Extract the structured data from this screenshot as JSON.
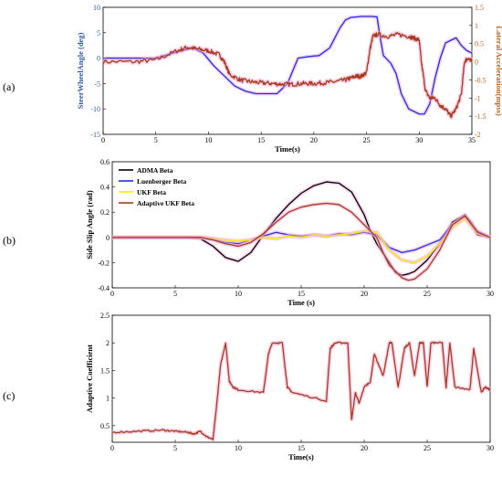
{
  "panels": [
    "(a)",
    "(b)",
    "(c)"
  ],
  "chart_data": [
    {
      "type": "line",
      "panel": "(a)",
      "xlabel": "Time(s)",
      "ylabel_left": "SteerWheelAngle (deg)",
      "ylabel_right": "Lateral Acceleration(mpss)",
      "xlim": [
        0,
        35
      ],
      "ylim_left": [
        -15,
        10
      ],
      "ylim_right": [
        -2,
        1.5
      ],
      "xticks": [
        0,
        5,
        10,
        15,
        20,
        25,
        30,
        35
      ],
      "yticks_left": [
        10,
        5,
        0,
        -5,
        -10,
        -15
      ],
      "yticks_right": [
        1.5,
        1,
        0.5,
        0,
        -0.5,
        -1,
        -1.5,
        -2
      ],
      "left_color": "#2f5aa8",
      "right_color": "#b5651d",
      "series": [
        {
          "axis": "left",
          "color": "#1f2fe0",
          "x": [
            0,
            5,
            7,
            8.5,
            9.5,
            10.5,
            11.5,
            12.5,
            13.5,
            14.5,
            15.5,
            16.5,
            17.5,
            18.5,
            19.5,
            20.5,
            21.5,
            22.5,
            23,
            23.5,
            24.5,
            25.5,
            26,
            26.3,
            26.6,
            27.3,
            27.8,
            28.3,
            29,
            30,
            30.5,
            31,
            31.5,
            32,
            32.5,
            33.5,
            34,
            34.5,
            35
          ],
          "y": [
            0,
            0,
            1.2,
            2.0,
            1.0,
            -1.5,
            -3.5,
            -5.5,
            -6.5,
            -7.0,
            -7.0,
            -7.0,
            -5.0,
            0.0,
            0.3,
            0.5,
            2.0,
            6.0,
            7.5,
            8.0,
            8.2,
            8.2,
            8.1,
            4.0,
            0.5,
            -1.0,
            -3.0,
            -7.0,
            -10.0,
            -11.0,
            -11.0,
            -9.0,
            -4.0,
            0.0,
            3.0,
            4.0,
            2.5,
            1.5,
            1.0
          ]
        },
        {
          "axis": "right",
          "color": "#a83a1a",
          "noisy": true,
          "x": [
            0,
            3,
            5,
            7,
            8,
            9,
            10,
            11,
            11.5,
            12,
            13,
            14,
            15,
            16,
            17,
            18,
            19,
            20,
            21,
            22,
            23,
            23.5,
            24,
            24.5,
            25,
            25.3,
            25.6,
            26,
            27,
            28,
            29,
            29.5,
            30,
            30.2,
            30.6,
            31,
            31.5,
            32,
            32.5,
            33,
            33.5,
            34,
            34.3,
            34.6,
            35
          ],
          "y": [
            0.0,
            0.0,
            0.05,
            0.3,
            0.4,
            0.35,
            0.3,
            0.2,
            0.0,
            -0.35,
            -0.5,
            -0.55,
            -0.58,
            -0.6,
            -0.62,
            -0.62,
            -0.6,
            -0.6,
            -0.58,
            -0.55,
            -0.5,
            -0.45,
            -0.4,
            -0.4,
            -0.3,
            0.3,
            0.7,
            0.75,
            0.7,
            0.75,
            0.7,
            0.65,
            0.6,
            0.0,
            -0.8,
            -1.0,
            -1.0,
            -1.2,
            -1.3,
            -1.5,
            -1.3,
            -0.9,
            0.0,
            0.1,
            0.0
          ]
        }
      ]
    },
    {
      "type": "line",
      "panel": "(b)",
      "xlabel": "Time (s)",
      "ylabel": "Side Slip Angle (rad)",
      "xlim": [
        0,
        30
      ],
      "ylim": [
        -0.4,
        0.6
      ],
      "xticks": [
        0,
        5,
        10,
        15,
        20,
        25,
        30
      ],
      "yticks": [
        0.6,
        0.4,
        0.2,
        0,
        -0.2,
        -0.4
      ],
      "legend": "top-left",
      "series": [
        {
          "name": "ADMA Beta",
          "color": "#000000",
          "x": [
            0,
            6,
            7,
            8,
            9,
            10,
            11,
            12,
            13,
            14,
            15,
            16,
            17,
            18,
            19,
            20,
            20.5,
            21,
            22,
            22.5,
            23,
            23.5,
            24,
            25,
            26,
            27,
            28,
            28.5,
            29,
            30
          ],
          "y": [
            0,
            0,
            -0.01,
            -0.07,
            -0.16,
            -0.19,
            -0.12,
            0.02,
            0.15,
            0.26,
            0.35,
            0.41,
            0.44,
            0.43,
            0.36,
            0.18,
            0.05,
            -0.05,
            -0.2,
            -0.28,
            -0.3,
            -0.29,
            -0.27,
            -0.18,
            -0.05,
            0.12,
            0.18,
            0.12,
            0.02,
            0
          ]
        },
        {
          "name": "Luenberger Beta",
          "color": "#1f2fe0",
          "x": [
            0,
            7,
            8,
            9,
            10,
            11,
            12,
            13,
            14,
            15,
            16,
            17,
            18,
            19,
            20,
            21,
            22,
            23,
            24,
            25,
            26,
            27,
            28,
            29,
            30
          ],
          "y": [
            0,
            0,
            -0.01,
            -0.04,
            -0.05,
            -0.02,
            0.01,
            0.04,
            0.02,
            0.01,
            0.02,
            0.01,
            0.03,
            0.02,
            0.04,
            0.02,
            -0.08,
            -0.12,
            -0.1,
            -0.06,
            -0.02,
            0.1,
            0.17,
            0.05,
            0
          ]
        },
        {
          "name": "UKF Beta",
          "color": "#f0f000",
          "x": [
            0,
            7,
            8,
            9,
            10,
            11,
            12,
            13,
            14,
            15,
            16,
            17,
            18,
            19,
            20,
            21,
            22,
            23,
            24,
            25,
            26,
            27,
            28,
            29,
            30
          ],
          "y": [
            0,
            0,
            -0.01,
            -0.02,
            -0.03,
            -0.02,
            0.0,
            -0.01,
            0.01,
            0.0,
            0.02,
            0.01,
            0.02,
            0.03,
            0.05,
            0.04,
            -0.1,
            -0.18,
            -0.2,
            -0.15,
            -0.05,
            0.08,
            0.15,
            0.03,
            0
          ]
        },
        {
          "name": "Adaptive UKF Beta",
          "color": "#a83a1a",
          "x": [
            0,
            7,
            8,
            9,
            10,
            11,
            12,
            13,
            14,
            15,
            16,
            17,
            18,
            19,
            20,
            21,
            21.5,
            22,
            23,
            23.5,
            24,
            25,
            26,
            27,
            28,
            29,
            30
          ],
          "y": [
            0,
            0,
            -0.02,
            -0.05,
            -0.07,
            -0.04,
            0.03,
            0.12,
            0.2,
            0.24,
            0.26,
            0.27,
            0.26,
            0.2,
            0.1,
            0.0,
            -0.12,
            -0.22,
            -0.32,
            -0.34,
            -0.33,
            -0.25,
            -0.1,
            0.1,
            0.17,
            0.04,
            0
          ]
        }
      ]
    },
    {
      "type": "line",
      "panel": "(c)",
      "xlabel": "Time(s)",
      "ylabel": "Adaptive Coefficient",
      "xlim": [
        0,
        30
      ],
      "ylim": [
        0.2,
        2.5
      ],
      "xticks": [
        0,
        5,
        10,
        15,
        20,
        25,
        30
      ],
      "yticks": [
        2.5,
        2,
        1.5,
        1,
        0.5
      ],
      "series": [
        {
          "color": "#a83a1a",
          "x": [
            0,
            2,
            4,
            5,
            6,
            6.5,
            7,
            7.5,
            8,
            8.3,
            8.6,
            9,
            9.3,
            9.6,
            10,
            12,
            12.4,
            12.7,
            13.5,
            13.9,
            14.3,
            17,
            17.3,
            17.7,
            18.7,
            19,
            19.3,
            19.6,
            20,
            20.5,
            20.8,
            21.5,
            22,
            22.2,
            22.7,
            23.2,
            23.6,
            24,
            24.4,
            24.7,
            25,
            25.3,
            26.2,
            26.5,
            26.8,
            27,
            27.2,
            28.4,
            28.7,
            29.3,
            29.6,
            30
          ],
          "y": [
            0.38,
            0.4,
            0.42,
            0.4,
            0.38,
            0.35,
            0.4,
            0.3,
            0.25,
            0.9,
            1.6,
            2.0,
            1.3,
            1.2,
            1.15,
            1.1,
            1.8,
            2.0,
            2.0,
            1.2,
            1.1,
            0.95,
            1.9,
            2.0,
            2.0,
            0.6,
            1.1,
            0.9,
            1.2,
            1.3,
            1.8,
            1.4,
            2.0,
            2.0,
            1.2,
            1.9,
            2.0,
            1.4,
            2.0,
            2.0,
            1.2,
            2.0,
            2.0,
            1.2,
            2.0,
            1.6,
            1.2,
            1.15,
            1.9,
            1.1,
            1.2,
            1.15
          ]
        }
      ]
    }
  ]
}
